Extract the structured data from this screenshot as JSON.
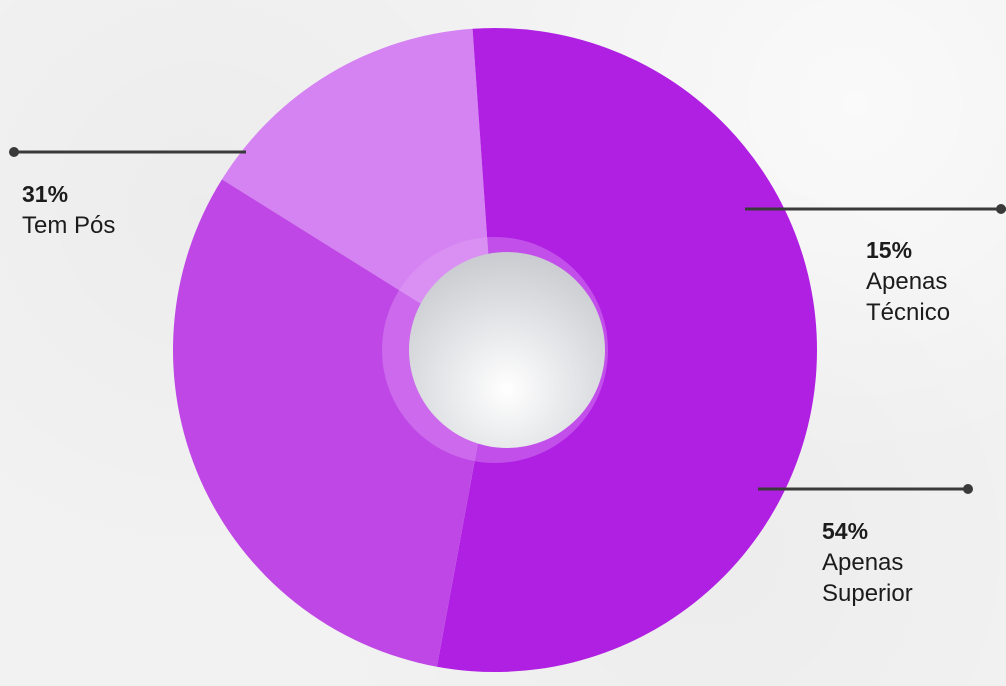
{
  "chart_data": {
    "type": "pie",
    "slices": [
      {
        "label_lines": [
          "Tem Pós"
        ],
        "percent_text": "31%",
        "value": 31,
        "color": "#bf47e6"
      },
      {
        "label_lines": [
          "Apenas",
          "Técnico"
        ],
        "percent_text": "15%",
        "value": 15,
        "color": "#d583f2"
      },
      {
        "label_lines": [
          "Apenas",
          "Superior"
        ],
        "percent_text": "54%",
        "value": 54,
        "color": "#b020e3"
      }
    ],
    "center_color": "#e8e9ec",
    "leader_color": "#3a3a3a"
  }
}
